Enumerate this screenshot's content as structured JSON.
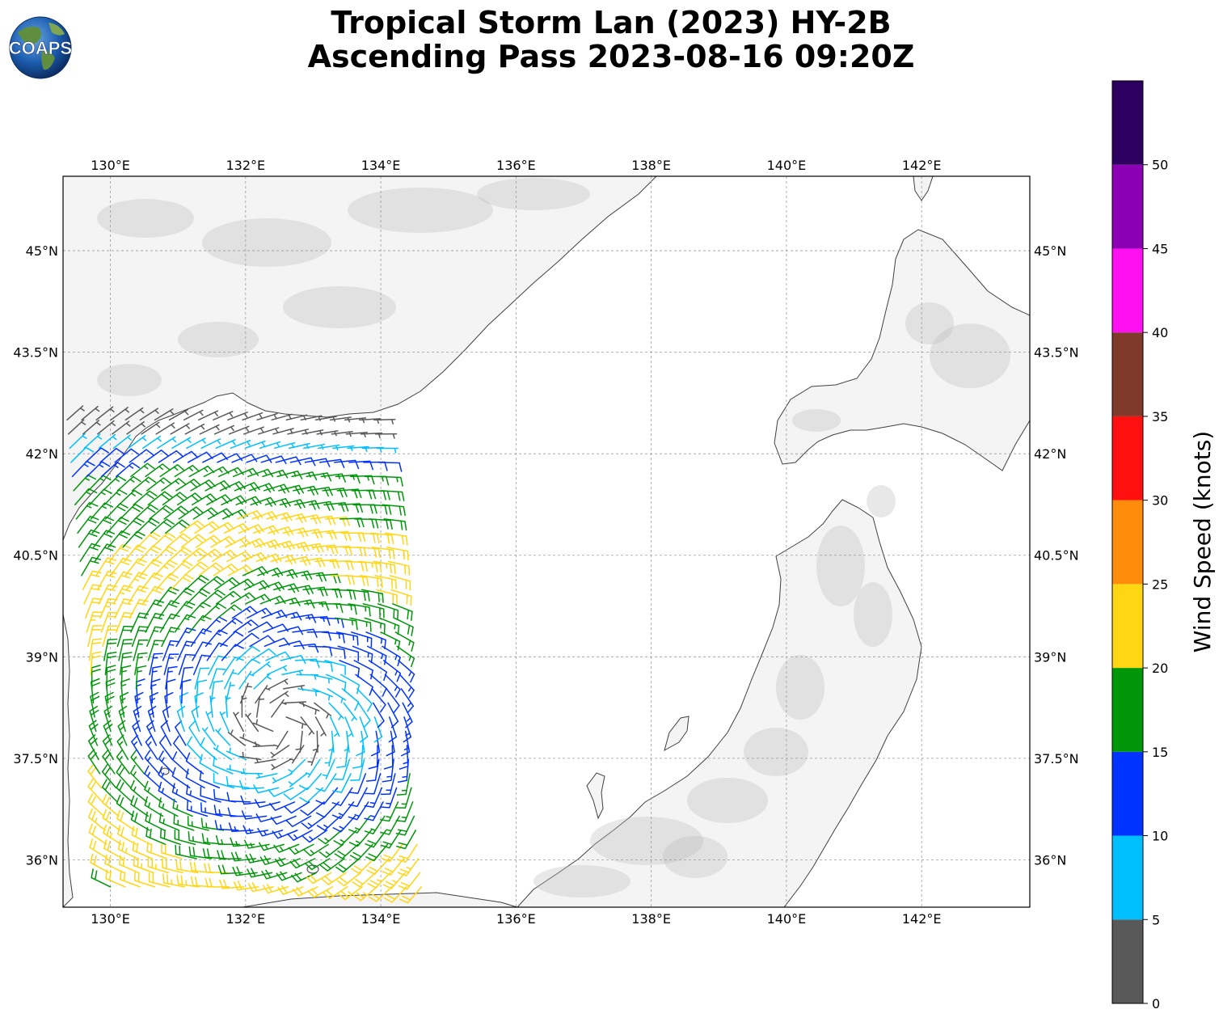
{
  "logo": {
    "text": "COAPS"
  },
  "title": {
    "line1": "Tropical Storm Lan (2023) HY-2B",
    "line2": "Ascending Pass 2023-08-16 09:20Z"
  },
  "map": {
    "lon_range": [
      129.3,
      143.6
    ],
    "lat_range": [
      35.3,
      46.1
    ],
    "lon_ticks": [
      {
        "value": 130,
        "label": "130°E"
      },
      {
        "value": 132,
        "label": "132°E"
      },
      {
        "value": 134,
        "label": "134°E"
      },
      {
        "value": 136,
        "label": "136°E"
      },
      {
        "value": 138,
        "label": "138°E"
      },
      {
        "value": 140,
        "label": "140°E"
      },
      {
        "value": 142,
        "label": "142°E"
      }
    ],
    "lat_ticks": [
      {
        "value": 45,
        "label": "45°N"
      },
      {
        "value": 43.5,
        "label": "43.5°N"
      },
      {
        "value": 42,
        "label": "42°N"
      },
      {
        "value": 40.5,
        "label": "40.5°N"
      },
      {
        "value": 39,
        "label": "39°N"
      },
      {
        "value": 37.5,
        "label": "37.5°N"
      },
      {
        "value": 36,
        "label": "36°N"
      }
    ],
    "gridlines": true,
    "land_color": "#f4f4f4",
    "terrain_color": "#bdbdbd",
    "coast_color": "#404040"
  },
  "wind_barbs": {
    "units": "knots",
    "swath": {
      "lon_start": 130.0,
      "lon_end": 134.6,
      "lat_start": 35.6,
      "lat_end": 42.5,
      "skew": 0.4
    },
    "wind_field": {
      "type": "cyclone",
      "center_lon": 132.5,
      "center_lat": 38.0,
      "max_speed_kt": 23,
      "radius_of_max_deg": 2.6,
      "min_speed_kt": 3
    }
  },
  "colorbar": {
    "label": "Wind Speed (knots)",
    "min": 0,
    "max": 55,
    "bins": [
      {
        "from": 0,
        "to": 5,
        "color": "#595959"
      },
      {
        "from": 5,
        "to": 10,
        "color": "#00bfff"
      },
      {
        "from": 10,
        "to": 15,
        "color": "#0033ff"
      },
      {
        "from": 15,
        "to": 20,
        "color": "#00960a"
      },
      {
        "from": 20,
        "to": 25,
        "color": "#ffd613"
      },
      {
        "from": 25,
        "to": 30,
        "color": "#ff8c0a"
      },
      {
        "from": 30,
        "to": 35,
        "color": "#ff1010"
      },
      {
        "from": 35,
        "to": 40,
        "color": "#7f3b2a"
      },
      {
        "from": 40,
        "to": 45,
        "color": "#ff10f0"
      },
      {
        "from": 45,
        "to": 50,
        "color": "#8c00b4"
      },
      {
        "from": 50,
        "to": 55,
        "color": "#2d0060"
      }
    ],
    "tick_labels": [
      "0",
      "5",
      "10",
      "15",
      "20",
      "25",
      "30",
      "35",
      "40",
      "45",
      "50"
    ]
  }
}
